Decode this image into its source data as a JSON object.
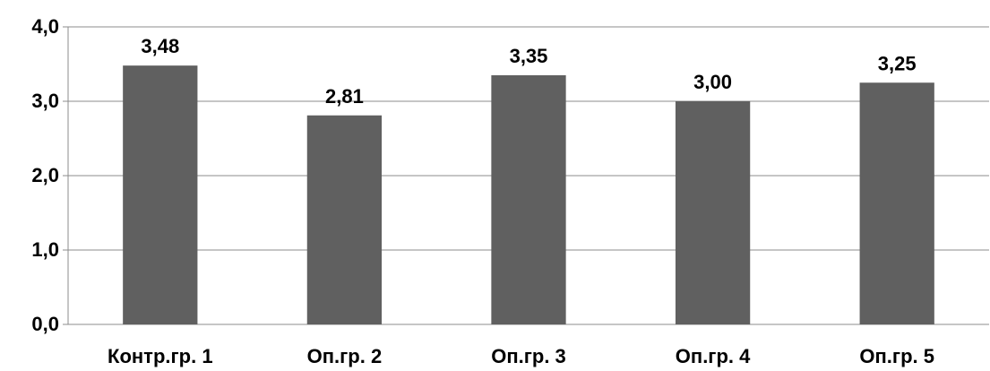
{
  "chart_data": {
    "type": "bar",
    "categories": [
      "Контр.гр. 1",
      "Оп.гр. 2",
      "Оп.гр. 3",
      "Оп.гр. 4",
      "Оп.гр. 5"
    ],
    "values": [
      3.48,
      2.81,
      3.35,
      3.0,
      3.25
    ],
    "data_labels": [
      "3,48",
      "2,81",
      "3,35",
      "3,00",
      "3,25"
    ],
    "title": "",
    "xlabel": "",
    "ylabel": "",
    "ylim": [
      0,
      4
    ],
    "yticks": [
      0,
      1,
      2,
      3,
      4
    ],
    "ytick_labels": [
      "0,0",
      "1,0",
      "2,0",
      "3,0",
      "4,0"
    ],
    "grid": true,
    "legend": "none",
    "bar_color": "#606060",
    "grid_color": "#8c8c8c"
  }
}
